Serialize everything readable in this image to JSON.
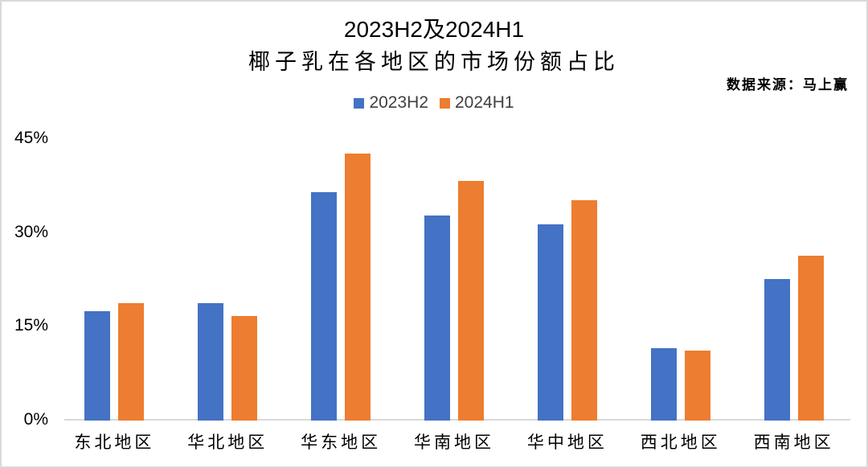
{
  "title": {
    "line1": "2023H2及2024H1",
    "line2": "椰子乳在各地区的市场份额占比"
  },
  "source_note": "数据来源：马上赢",
  "colors": {
    "series_2023H2": "#4472C4",
    "series_2024H1": "#ED7D31",
    "axis_line": "#D9D9D9",
    "text": "#000000",
    "legend_text": "#404040"
  },
  "chart_data": {
    "type": "bar",
    "title": "2023H2及2024H1 椰子乳在各地区的市场份额占比",
    "categories": [
      "东北地区",
      "华北地区",
      "华东地区",
      "华南地区",
      "华中地区",
      "西北地区",
      "西南地区"
    ],
    "series": [
      {
        "name": "2023H2",
        "color": "#4472C4",
        "values": [
          17.5,
          18.8,
          36.5,
          32.8,
          31.4,
          11.6,
          22.6
        ]
      },
      {
        "name": "2024H1",
        "color": "#ED7D31",
        "values": [
          18.8,
          16.7,
          42.7,
          38.3,
          35.2,
          11.2,
          26.4
        ]
      }
    ],
    "xlabel": "",
    "ylabel": "",
    "ylim": [
      0,
      45
    ],
    "ytick_labels": [
      "0%",
      "15%",
      "30%",
      "45%"
    ],
    "ytick_values": [
      0,
      15,
      30,
      45
    ],
    "grid": false,
    "legend_position": "top-center"
  }
}
